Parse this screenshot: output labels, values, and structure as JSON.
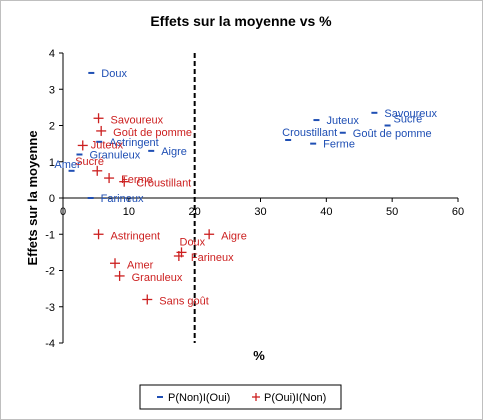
{
  "chart_data": {
    "type": "scatter",
    "title": "Effets sur la moyenne vs %",
    "xlabel": "%",
    "ylabel": "Effets sur la moyenne",
    "xlim": [
      0,
      60
    ],
    "ylim": [
      -4,
      4
    ],
    "x_ticks": [
      "0",
      "10",
      "20",
      "30",
      "40",
      "50",
      "60"
    ],
    "y_ticks": [
      "4",
      "3",
      "2",
      "1",
      "0",
      "-1",
      "-2",
      "-3",
      "-4"
    ],
    "grid": false,
    "reference_line_x": 20,
    "legend_position": "bottom",
    "series": [
      {
        "name": "P(Non)I(Oui)",
        "marker": "-",
        "color": "#1f4fb4",
        "points": [
          {
            "label": "Doux",
            "x": 4.3,
            "y": 3.45
          },
          {
            "label": "Juteux",
            "x": 38.5,
            "y": 2.15
          },
          {
            "label": "Savoureux",
            "x": 47.3,
            "y": 2.35
          },
          {
            "label": "Sucré",
            "x": 49.3,
            "y": 2.0
          },
          {
            "label": "Croustillant",
            "x": 34.2,
            "y": 1.6
          },
          {
            "label": "Goût de pomme",
            "x": 42.5,
            "y": 1.8
          },
          {
            "label": "Ferme",
            "x": 38.0,
            "y": 1.5
          },
          {
            "label": "Astringent",
            "x": 5.5,
            "y": 1.55
          },
          {
            "label": "Aigre",
            "x": 13.4,
            "y": 1.3
          },
          {
            "label": "Granuleux",
            "x": 2.5,
            "y": 1.2
          },
          {
            "label": "Amer",
            "x": 1.3,
            "y": 0.75
          },
          {
            "label": "Farineux",
            "x": 4.2,
            "y": 0.0
          }
        ]
      },
      {
        "name": "P(Oui)I(Non)",
        "marker": "+",
        "color": "#cc1f1f",
        "points": [
          {
            "label": "Savoureux",
            "x": 5.4,
            "y": 2.2
          },
          {
            "label": "Goût de pomme",
            "x": 5.8,
            "y": 1.85
          },
          {
            "label": "Juteux",
            "x": 3.0,
            "y": 1.45
          },
          {
            "label": "Sucré",
            "x": 5.2,
            "y": 0.75
          },
          {
            "label": "Ferme",
            "x": 7.0,
            "y": 0.55
          },
          {
            "label": "Croustillant",
            "x": 9.3,
            "y": 0.45
          },
          {
            "label": "Astringent",
            "x": 5.4,
            "y": -1.0
          },
          {
            "label": "Aigre",
            "x": 22.2,
            "y": -1.0
          },
          {
            "label": "Doux",
            "x": 18.0,
            "y": -1.5
          },
          {
            "label": "Farineux",
            "x": 17.6,
            "y": -1.6
          },
          {
            "label": "Amer",
            "x": 7.9,
            "y": -1.8
          },
          {
            "label": "Granuleux",
            "x": 8.6,
            "y": -2.15
          },
          {
            "label": "Sans goût",
            "x": 12.8,
            "y": -2.8
          }
        ]
      }
    ],
    "legend": [
      {
        "marker": "-",
        "name": "P(Non)I(Oui)",
        "color": "#1f4fb4"
      },
      {
        "marker": "+",
        "name": "P(Oui)I(Non)",
        "color": "#cc1f1f"
      }
    ]
  }
}
